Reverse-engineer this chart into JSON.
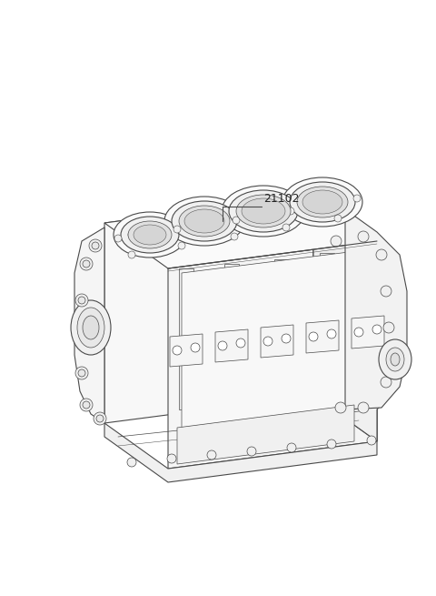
{
  "background_color": "#ffffff",
  "label_text": "21102",
  "label_fontsize": 9,
  "label_color": "#222222",
  "line_color": "#4a4a4a",
  "figure_width": 4.8,
  "figure_height": 6.55,
  "dpi": 100,
  "lw_main": 0.8,
  "lw_detail": 0.5,
  "face_color": "#ffffff",
  "shadow_color": "#eeeeee"
}
